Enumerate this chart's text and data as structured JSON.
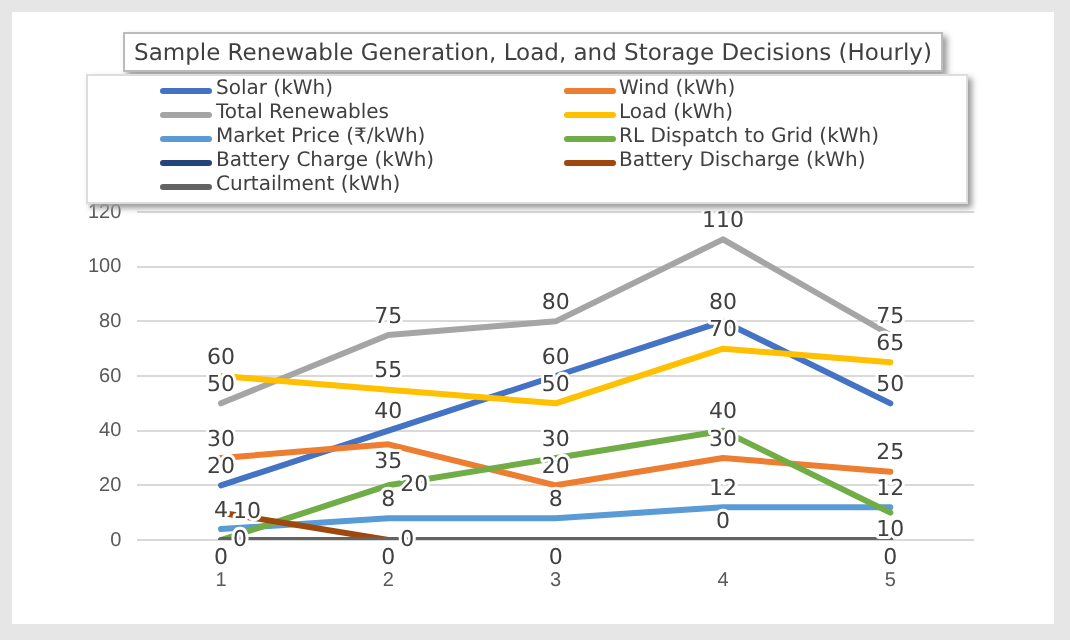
{
  "chart_data": {
    "type": "line",
    "title": "Sample Renewable Generation, Load, and Storage Decisions (Hourly)",
    "categories": [
      "1",
      "2",
      "3",
      "4",
      "5"
    ],
    "series": [
      {
        "name": "Solar (kWh)",
        "color": "#4472c4",
        "values": [
          20,
          40,
          60,
          80,
          50
        ]
      },
      {
        "name": "Wind (kWh)",
        "color": "#ed7d31",
        "values": [
          30,
          35,
          20,
          30,
          25
        ]
      },
      {
        "name": "Total Renewables",
        "color": "#a5a5a5",
        "values": [
          50,
          75,
          80,
          110,
          75
        ]
      },
      {
        "name": "Load (kWh)",
        "color": "#ffc000",
        "values": [
          60,
          55,
          50,
          70,
          65
        ]
      },
      {
        "name": "Market Price (₹/kWh)",
        "color": "#5b9bd5",
        "values": [
          4,
          8,
          8,
          12,
          12
        ]
      },
      {
        "name": "RL Dispatch to Grid (kWh)",
        "color": "#70ad47",
        "values": [
          0,
          20,
          30,
          40,
          10
        ]
      },
      {
        "name": "Battery Charge (kWh)",
        "color": "#264478",
        "values": [
          null,
          null,
          null,
          null,
          null
        ]
      },
      {
        "name": "Battery Discharge (kWh)",
        "color": "#9e480e",
        "values": [
          10,
          0,
          null,
          null,
          null
        ]
      },
      {
        "name": "Curtailment (kWh)",
        "color": "#636363",
        "values": [
          0,
          0,
          0,
          0,
          0
        ]
      }
    ],
    "ylim": [
      0,
      120
    ],
    "yticks": [
      0,
      20,
      40,
      60,
      80,
      100,
      120
    ],
    "grid": "y",
    "legend": "top",
    "data_labels": true,
    "marker": "none",
    "line_style": "solid"
  }
}
